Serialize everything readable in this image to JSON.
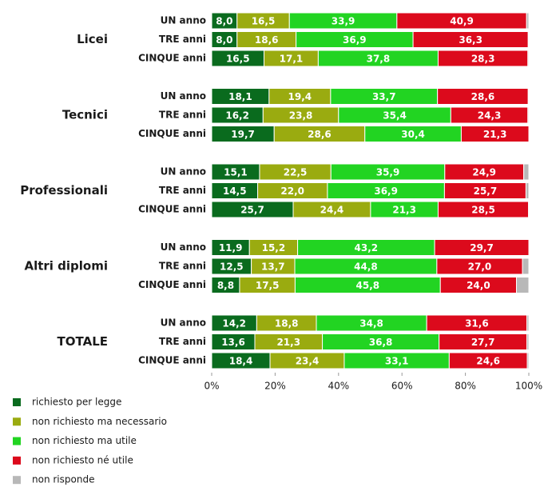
{
  "chart_data": {
    "type": "stacked-bar-horizontal",
    "groups": [
      {
        "name": "Licei",
        "categories": [
          "UN anno",
          "TRE anni",
          "CINQUE anni"
        ]
      },
      {
        "name": "Tecnici",
        "categories": [
          "UN anno",
          "TRE anni",
          "CINQUE anni"
        ]
      },
      {
        "name": "Professionali",
        "categories": [
          "UN anno",
          "TRE anni",
          "CINQUE anni"
        ]
      },
      {
        "name": "Altri diplomi",
        "categories": [
          "UN anno",
          "TRE anni",
          "CINQUE anni"
        ]
      },
      {
        "name": "TOTALE",
        "categories": [
          "UN anno",
          "TRE anni",
          "CINQUE anni"
        ]
      }
    ],
    "series": [
      {
        "name": "richiesto per legge",
        "color": "#0a6b1e",
        "values": [
          8.0,
          8.0,
          16.5,
          18.1,
          16.2,
          19.7,
          15.1,
          14.5,
          25.7,
          11.9,
          12.5,
          8.8,
          14.2,
          13.6,
          18.4
        ],
        "value_labels": [
          "8,0",
          "8,0",
          "16,5",
          "18,1",
          "16,2",
          "19,7",
          "15,1",
          "14,5",
          "25,7",
          "11,9",
          "12,5",
          "8,8",
          "14,2",
          "13,6",
          "18,4"
        ]
      },
      {
        "name": "non richiesto ma necessario",
        "color": "#9aab10",
        "values": [
          16.5,
          18.6,
          17.1,
          19.4,
          23.8,
          28.6,
          22.5,
          22.0,
          24.4,
          15.2,
          13.7,
          17.5,
          18.8,
          21.3,
          23.4
        ],
        "value_labels": [
          "16,5",
          "18,6",
          "17,1",
          "19,4",
          "23,8",
          "28,6",
          "22,5",
          "22,0",
          "24,4",
          "15,2",
          "13,7",
          "17,5",
          "18,8",
          "21,3",
          "23,4"
        ]
      },
      {
        "name": "non richiesto ma utile",
        "color": "#22d422",
        "values": [
          33.9,
          36.9,
          37.8,
          33.7,
          35.4,
          30.4,
          35.9,
          36.9,
          21.3,
          43.2,
          44.8,
          45.8,
          34.8,
          36.8,
          33.1
        ],
        "value_labels": [
          "33,9",
          "36,9",
          "37,8",
          "33,7",
          "35,4",
          "30,4",
          "35,9",
          "36,9",
          "21,3",
          "43,2",
          "44,8",
          "45,8",
          "34,8",
          "36,8",
          "33,1"
        ]
      },
      {
        "name": "non richiesto né utile",
        "color": "#dc0a1c",
        "values": [
          40.9,
          36.3,
          28.3,
          28.6,
          24.3,
          21.3,
          24.9,
          25.7,
          28.5,
          29.7,
          27.0,
          24.0,
          31.6,
          27.7,
          24.6
        ],
        "value_labels": [
          "40,9",
          "36,3",
          "28,3",
          "28,6",
          "24,3",
          "21,3",
          "24,9",
          "25,7",
          "28,5",
          "29,7",
          "27,0",
          "24,0",
          "31,6",
          "27,7",
          "24,6"
        ]
      },
      {
        "name": "non risponde",
        "color": "#b8b8b8",
        "values": [
          0.7,
          0.2,
          0.3,
          0.2,
          0.3,
          0,
          1.6,
          0.9,
          0.1,
          0,
          2.0,
          3.9,
          0.6,
          0.6,
          0.5
        ]
      }
    ],
    "xlim": [
      0,
      100
    ],
    "xticks": [
      {
        "value": 0,
        "label": "0%"
      },
      {
        "value": 20,
        "label": "20%"
      },
      {
        "value": 40,
        "label": "40%"
      },
      {
        "value": 60,
        "label": "60%"
      },
      {
        "value": 80,
        "label": "80%"
      },
      {
        "value": 100,
        "label": "100%"
      }
    ],
    "legend": "bottom-left"
  }
}
